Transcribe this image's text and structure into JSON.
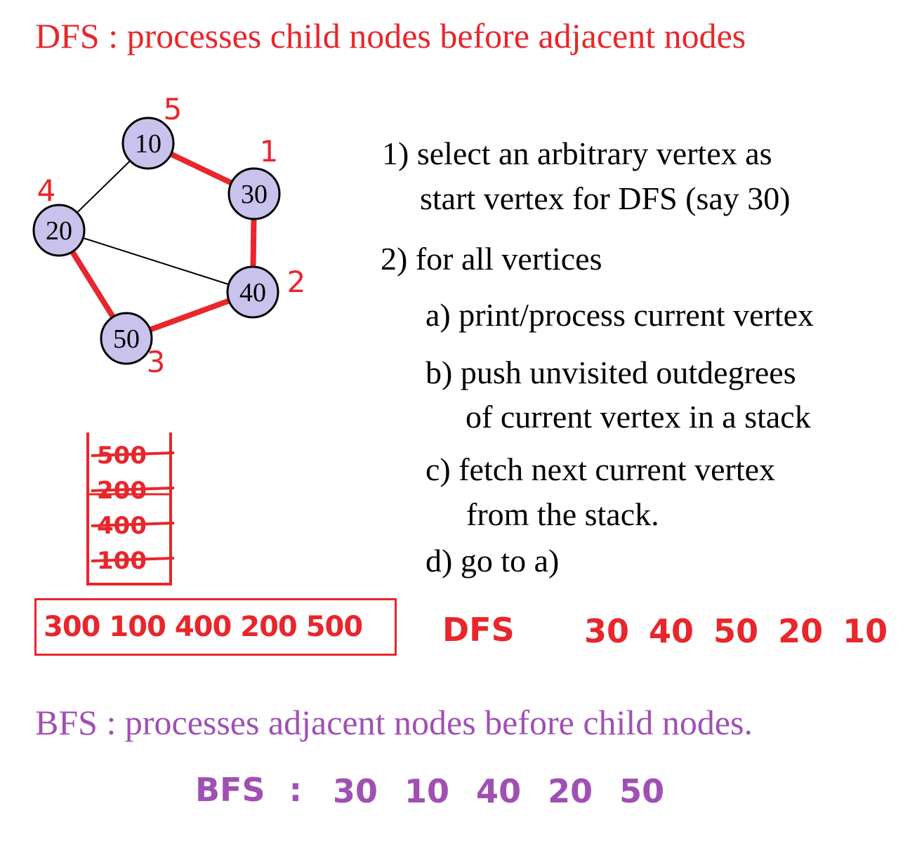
{
  "colors": {
    "dfs": "#e8262b",
    "bfs": "#a050b4",
    "node_fill": "#c8c2ec",
    "text": "#000000"
  },
  "dfs_title": "DFS : processes child nodes before adjacent nodes",
  "bfs_title": "BFS : processes adjacent nodes before child nodes.",
  "graph": {
    "nodes": [
      {
        "id": "10",
        "label": "10",
        "order": "5"
      },
      {
        "id": "30",
        "label": "30",
        "order": "1"
      },
      {
        "id": "20",
        "label": "20",
        "order": "4"
      },
      {
        "id": "40",
        "label": "40",
        "order": "2"
      },
      {
        "id": "50",
        "label": "50",
        "order": "3"
      }
    ],
    "edges": [
      {
        "from": "10",
        "to": "20",
        "traversed": false
      },
      {
        "from": "10",
        "to": "30",
        "traversed": true
      },
      {
        "from": "20",
        "to": "40",
        "traversed": false
      },
      {
        "from": "20",
        "to": "50",
        "traversed": true
      },
      {
        "from": "30",
        "to": "40",
        "traversed": true
      },
      {
        "from": "40",
        "to": "50",
        "traversed": true
      }
    ]
  },
  "steps": {
    "s1_line1": "1) select an arbitrary vertex as",
    "s1_line2": "start vertex for DFS (say 30)",
    "s2": "2) for all vertices",
    "a": "a) print/process current vertex",
    "b_line1": "b) push unvisited outdegrees",
    "b_line2": "of current vertex in a stack",
    "c_line1": "c) fetch next current vertex",
    "c_line2": "from the stack.",
    "d": "d) go to a)"
  },
  "stack": [
    "500",
    "200",
    "400",
    "100"
  ],
  "visit_order": "300 100 400 200 500",
  "dfs_label": "DFS",
  "dfs_result": "30 40 50 20 10",
  "bfs_result_label": "BFS :",
  "bfs_result": "30 10 40 20 50"
}
